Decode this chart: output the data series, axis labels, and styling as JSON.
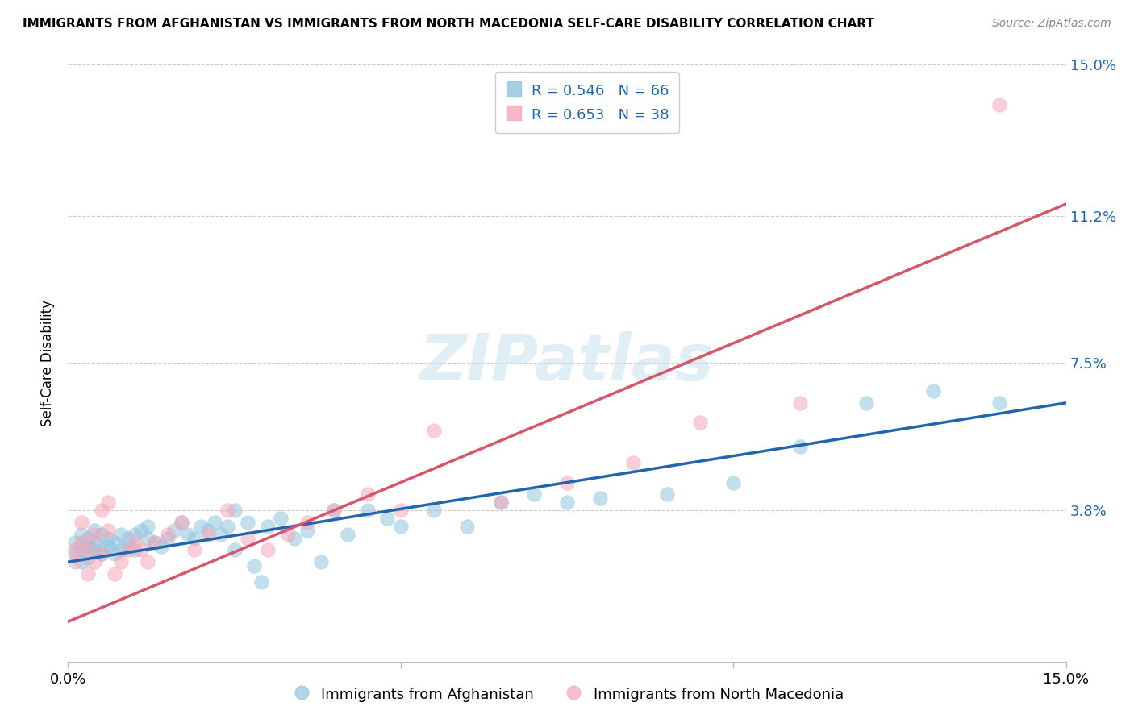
{
  "title": "IMMIGRANTS FROM AFGHANISTAN VS IMMIGRANTS FROM NORTH MACEDONIA SELF-CARE DISABILITY CORRELATION CHART",
  "source": "Source: ZipAtlas.com",
  "ylabel": "Self-Care Disability",
  "legend_label1": "Immigrants from Afghanistan",
  "legend_label2": "Immigrants from North Macedonia",
  "R1": 0.546,
  "N1": 66,
  "R2": 0.653,
  "N2": 38,
  "color1": "#92c5de",
  "color2": "#f4a6b8",
  "line_color1": "#2166ac",
  "line_color2": "#d6566a",
  "xlim": [
    0.0,
    0.15
  ],
  "ylim": [
    0.0,
    0.15
  ],
  "yticks": [
    0.038,
    0.075,
    0.112,
    0.15
  ],
  "ytick_labels": [
    "3.8%",
    "7.5%",
    "11.2%",
    "15.0%"
  ],
  "xticks": [
    0.0,
    0.05,
    0.1,
    0.15
  ],
  "xtick_labels": [
    "0.0%",
    "",
    "",
    "15.0%"
  ],
  "watermark": "ZIPatlas",
  "afghanistan_x": [
    0.001,
    0.001,
    0.002,
    0.002,
    0.002,
    0.003,
    0.003,
    0.003,
    0.004,
    0.004,
    0.004,
    0.005,
    0.005,
    0.005,
    0.006,
    0.006,
    0.007,
    0.007,
    0.008,
    0.008,
    0.009,
    0.009,
    0.01,
    0.01,
    0.011,
    0.012,
    0.012,
    0.013,
    0.014,
    0.015,
    0.016,
    0.017,
    0.018,
    0.019,
    0.02,
    0.021,
    0.022,
    0.023,
    0.024,
    0.025,
    0.027,
    0.028,
    0.03,
    0.032,
    0.034,
    0.036,
    0.038,
    0.04,
    0.042,
    0.045,
    0.048,
    0.05,
    0.055,
    0.06,
    0.065,
    0.07,
    0.075,
    0.08,
    0.09,
    0.1,
    0.11,
    0.12,
    0.13,
    0.14,
    0.025,
    0.029
  ],
  "afghanistan_y": [
    0.027,
    0.03,
    0.028,
    0.032,
    0.025,
    0.029,
    0.031,
    0.026,
    0.03,
    0.028,
    0.033,
    0.028,
    0.032,
    0.027,
    0.031,
    0.029,
    0.03,
    0.027,
    0.032,
    0.028,
    0.029,
    0.031,
    0.032,
    0.028,
    0.033,
    0.031,
    0.034,
    0.03,
    0.029,
    0.031,
    0.033,
    0.035,
    0.032,
    0.031,
    0.034,
    0.033,
    0.035,
    0.032,
    0.034,
    0.028,
    0.035,
    0.024,
    0.034,
    0.036,
    0.031,
    0.033,
    0.025,
    0.038,
    0.032,
    0.038,
    0.036,
    0.034,
    0.038,
    0.034,
    0.04,
    0.042,
    0.04,
    0.041,
    0.042,
    0.045,
    0.054,
    0.065,
    0.068,
    0.065,
    0.038,
    0.02
  ],
  "north_macedonia_x": [
    0.001,
    0.001,
    0.002,
    0.002,
    0.003,
    0.003,
    0.004,
    0.004,
    0.005,
    0.005,
    0.006,
    0.006,
    0.007,
    0.008,
    0.009,
    0.01,
    0.011,
    0.012,
    0.013,
    0.015,
    0.017,
    0.019,
    0.021,
    0.024,
    0.027,
    0.03,
    0.033,
    0.036,
    0.04,
    0.045,
    0.05,
    0.055,
    0.065,
    0.075,
    0.085,
    0.095,
    0.11,
    0.14
  ],
  "north_macedonia_y": [
    0.025,
    0.028,
    0.03,
    0.035,
    0.028,
    0.022,
    0.025,
    0.032,
    0.038,
    0.027,
    0.04,
    0.033,
    0.022,
    0.025,
    0.028,
    0.03,
    0.028,
    0.025,
    0.03,
    0.032,
    0.035,
    0.028,
    0.032,
    0.038,
    0.031,
    0.028,
    0.032,
    0.035,
    0.038,
    0.042,
    0.038,
    0.058,
    0.04,
    0.045,
    0.05,
    0.06,
    0.065,
    0.14
  ],
  "line1_x0": 0.0,
  "line1_y0": 0.025,
  "line1_x1": 0.15,
  "line1_y1": 0.065,
  "line2_x0": 0.0,
  "line2_y0": 0.01,
  "line2_x1": 0.15,
  "line2_y1": 0.115
}
